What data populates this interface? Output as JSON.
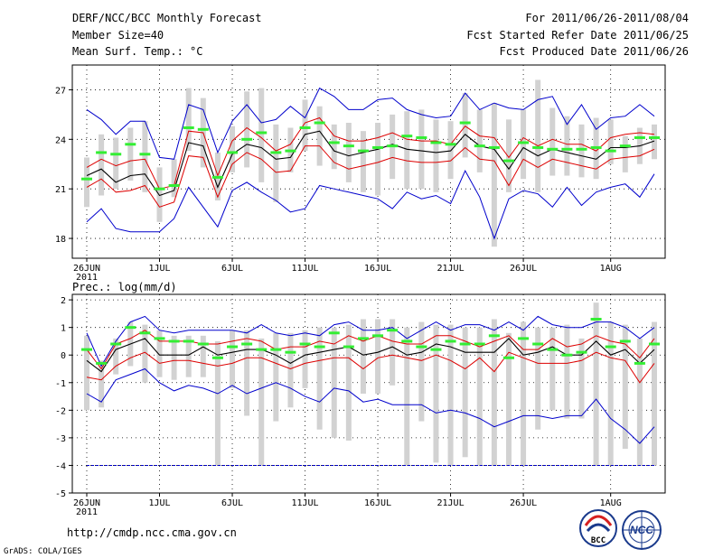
{
  "header": {
    "title": "DERF/NCC/BCC Monthly Forecast",
    "member": "Member Size=40",
    "variable": "Mean Surf. Temp.: °C",
    "valid": "For 2011/06/26-2011/08/04",
    "started": "Fcst Started Refer Date 2011/06/25",
    "produced": "Fcst Produced Date 2011/06/26"
  },
  "footer": {
    "url": "http://cmdp.ncc.cma.gov.cn",
    "grads": "GrADS: COLA/IGES"
  },
  "logos": {
    "bcc": "BCC",
    "ncc": "NCC"
  },
  "colors": {
    "box": "#d2d2d2",
    "median": "#33ee33",
    "mean": "#000000",
    "inner": "#dd0000",
    "outer": "#0000cc",
    "frame": "#000000"
  },
  "chart_data": [
    {
      "type": "line",
      "title": "Mean Surf. Temp.: °C",
      "x_ticks": [
        "26JUN",
        "1JUL",
        "6JUL",
        "11JUL",
        "16JUL",
        "21JUL",
        "26JUL",
        "1AUG"
      ],
      "x_year": "2011",
      "ylim": [
        16.8,
        28.5
      ],
      "y_ticks": [
        "18",
        "21",
        "24",
        "27"
      ],
      "y_values": [
        18,
        21,
        24,
        27
      ],
      "days": 40,
      "series": [
        {
          "name": "max",
          "values": [
            25.8,
            25.2,
            24.3,
            25.1,
            25.1,
            22.9,
            22.8,
            26.1,
            25.8,
            23.2,
            25.1,
            26.1,
            25.0,
            25.2,
            26.0,
            25.3,
            27.1,
            26.6,
            25.8,
            25.8,
            26.4,
            26.5,
            25.8,
            25.5,
            25.3,
            25.4,
            26.8,
            25.8,
            26.2,
            25.9,
            25.8,
            26.4,
            26.6,
            24.9,
            26.1,
            24.6,
            25.3,
            25.4,
            26.1,
            25.4
          ]
        },
        {
          "name": "p90",
          "values": [
            22.3,
            22.8,
            22.4,
            22.7,
            22.8,
            21.0,
            21.2,
            24.5,
            24.4,
            21.8,
            23.9,
            24.7,
            24.1,
            23.3,
            23.7,
            25.0,
            25.3,
            24.2,
            23.9,
            23.9,
            24.1,
            24.4,
            24.0,
            23.9,
            23.9,
            23.7,
            24.8,
            24.2,
            24.1,
            22.9,
            24.1,
            23.6,
            24.0,
            23.7,
            23.7,
            23.3,
            24.1,
            24.3,
            24.4,
            24.3
          ]
        },
        {
          "name": "mean",
          "values": [
            21.8,
            22.2,
            21.4,
            21.8,
            21.9,
            20.6,
            20.9,
            23.8,
            23.6,
            21.1,
            23.1,
            23.7,
            23.5,
            22.8,
            22.9,
            24.3,
            24.5,
            23.3,
            23.0,
            23.2,
            23.4,
            23.7,
            23.4,
            23.3,
            23.2,
            23.3,
            24.3,
            23.6,
            23.4,
            22.2,
            23.5,
            23.0,
            23.4,
            23.2,
            23.0,
            22.8,
            23.5,
            23.5,
            23.6,
            23.9
          ]
        },
        {
          "name": "p10",
          "values": [
            21.1,
            21.6,
            20.8,
            20.9,
            21.2,
            19.9,
            20.2,
            23.0,
            22.9,
            20.5,
            22.5,
            23.2,
            22.8,
            22.0,
            22.1,
            23.6,
            23.6,
            22.6,
            22.2,
            22.4,
            22.6,
            22.9,
            22.7,
            22.6,
            22.6,
            22.7,
            23.5,
            22.8,
            22.7,
            21.2,
            22.8,
            22.3,
            22.8,
            22.6,
            22.4,
            22.2,
            22.8,
            22.9,
            23.0,
            23.4
          ]
        },
        {
          "name": "min",
          "values": [
            19.0,
            19.8,
            18.6,
            18.4,
            18.4,
            18.4,
            19.2,
            21.1,
            19.9,
            18.7,
            20.9,
            21.4,
            20.8,
            20.3,
            19.6,
            19.8,
            21.2,
            21.0,
            20.8,
            20.6,
            20.4,
            19.8,
            20.8,
            20.4,
            20.6,
            20.1,
            22.1,
            20.5,
            18.0,
            20.4,
            20.9,
            20.7,
            19.9,
            21.1,
            20.0,
            20.8,
            21.1,
            21.3,
            20.5,
            21.9
          ]
        },
        {
          "name": "median",
          "values": [
            21.6,
            23.2,
            23.1,
            23.7,
            23.1,
            21.0,
            21.2,
            24.7,
            24.6,
            21.7,
            23.2,
            24.0,
            24.4,
            23.2,
            23.3,
            24.7,
            25.0,
            23.8,
            23.6,
            23.3,
            23.5,
            23.6,
            24.2,
            24.1,
            23.8,
            23.7,
            25.0,
            23.6,
            23.5,
            22.7,
            23.8,
            23.5,
            23.4,
            23.4,
            23.4,
            23.5,
            23.3,
            23.6,
            24.1,
            24.1
          ]
        },
        {
          "name": "box_hi",
          "values": [
            22.9,
            24.3,
            24.1,
            24.7,
            25.1,
            22.3,
            22.8,
            27.1,
            26.5,
            23.2,
            24.8,
            26.9,
            27.1,
            24.9,
            24.7,
            26.4,
            26.0,
            24.9,
            25.0,
            24.5,
            25.0,
            25.5,
            25.7,
            25.8,
            25.2,
            25.1,
            26.8,
            25.8,
            26.2,
            25.2,
            25.8,
            27.6,
            25.9,
            25.4,
            24.9,
            25.3,
            25.2,
            24.2,
            24.7,
            24.9
          ]
        },
        {
          "name": "box_lo",
          "values": [
            19.9,
            20.6,
            21.0,
            21.5,
            20.8,
            19.0,
            20.5,
            23.3,
            22.3,
            20.3,
            22.0,
            22.3,
            21.4,
            20.2,
            22.0,
            23.3,
            22.4,
            22.2,
            21.4,
            20.8,
            20.6,
            21.6,
            21.0,
            21.0,
            20.8,
            21.6,
            22.9,
            22.0,
            17.5,
            20.8,
            21.6,
            20.8,
            21.8,
            21.8,
            21.7,
            21.6,
            22.5,
            22.0,
            22.5,
            22.8
          ]
        }
      ]
    },
    {
      "type": "line",
      "title": "Prec.: log(mm/d)",
      "x_ticks": [
        "26JUN",
        "1JUL",
        "6JUL",
        "11JUL",
        "16JUL",
        "21JUL",
        "26JUL",
        "1AUG"
      ],
      "x_year": "2011",
      "ylim": [
        -5,
        2.2
      ],
      "y_ticks": [
        "2",
        "1",
        "0",
        "-1",
        "-2",
        "-3",
        "-4",
        "-5"
      ],
      "y_values": [
        2,
        1,
        0,
        -1,
        -2,
        -3,
        -4,
        -5
      ],
      "days": 40,
      "floor": -4,
      "series": [
        {
          "name": "max",
          "values": [
            0.8,
            -0.4,
            0.5,
            1.2,
            1.4,
            0.9,
            0.8,
            0.9,
            0.9,
            0.9,
            0.9,
            0.8,
            1.1,
            0.8,
            0.7,
            0.8,
            0.7,
            1.1,
            1.2,
            0.9,
            0.9,
            1.0,
            0.6,
            0.9,
            1.2,
            0.9,
            1.1,
            1.1,
            0.9,
            1.2,
            0.9,
            1.4,
            1.1,
            1.0,
            1.0,
            1.2,
            1.2,
            1.0,
            0.6,
            1.0
          ]
        },
        {
          "name": "p90",
          "values": [
            0.2,
            -0.5,
            0.4,
            0.6,
            0.9,
            0.5,
            0.5,
            0.5,
            0.4,
            0.4,
            0.5,
            0.6,
            0.5,
            0.2,
            0.3,
            0.3,
            0.5,
            0.4,
            0.7,
            0.5,
            0.7,
            0.5,
            0.4,
            0.4,
            0.7,
            0.7,
            0.5,
            0.3,
            0.5,
            0.7,
            0.2,
            0.2,
            0.6,
            0.3,
            0.4,
            0.7,
            0.5,
            0.4,
            -0.1,
            0.6
          ]
        },
        {
          "name": "mean",
          "values": [
            -0.2,
            -0.6,
            0.2,
            0.4,
            0.6,
            0.0,
            0.0,
            0.0,
            0.3,
            0.0,
            0.1,
            0.2,
            0.2,
            0.0,
            -0.3,
            0.0,
            0.1,
            0.2,
            0.3,
            0.0,
            0.1,
            0.3,
            0.0,
            0.1,
            0.4,
            0.3,
            0.1,
            0.1,
            0.1,
            0.6,
            0.0,
            0.1,
            0.3,
            0.0,
            0.0,
            0.5,
            0.0,
            0.2,
            -0.3,
            0.2
          ]
        },
        {
          "name": "p10",
          "values": [
            -0.8,
            -0.9,
            -0.4,
            -0.1,
            0.1,
            -0.3,
            -0.2,
            -0.2,
            -0.3,
            -0.4,
            -0.3,
            -0.1,
            -0.1,
            -0.3,
            -0.5,
            -0.3,
            -0.2,
            -0.1,
            -0.1,
            -0.5,
            -0.1,
            0.0,
            -0.1,
            -0.2,
            0.0,
            -0.2,
            -0.5,
            -0.1,
            -0.6,
            0.1,
            -0.1,
            -0.3,
            -0.3,
            -0.3,
            -0.2,
            0.1,
            -0.1,
            -0.2,
            -1.0,
            -0.3
          ]
        },
        {
          "name": "min",
          "values": [
            -1.4,
            -1.7,
            -0.9,
            -0.7,
            -0.5,
            -1.0,
            -1.3,
            -1.1,
            -1.2,
            -1.4,
            -1.1,
            -1.4,
            -1.2,
            -1.0,
            -1.2,
            -1.5,
            -1.7,
            -1.2,
            -1.3,
            -1.7,
            -1.6,
            -1.8,
            -1.8,
            -1.8,
            -2.1,
            -2.0,
            -2.1,
            -2.3,
            -2.6,
            -2.4,
            -2.2,
            -2.2,
            -2.3,
            -2.2,
            -2.2,
            -1.6,
            -2.3,
            -2.7,
            -3.2,
            -2.6
          ]
        },
        {
          "name": "median",
          "values": [
            0.2,
            -0.3,
            0.4,
            1.0,
            0.8,
            0.6,
            0.5,
            0.5,
            0.4,
            -0.1,
            0.3,
            0.4,
            0.2,
            0.2,
            0.1,
            0.4,
            0.3,
            0.8,
            0.3,
            0.6,
            0.7,
            0.9,
            0.5,
            0.3,
            0.2,
            0.5,
            0.4,
            0.4,
            0.7,
            -0.1,
            0.6,
            0.4,
            0.2,
            0.0,
            0.1,
            1.3,
            0.3,
            0.5,
            -0.3,
            0.4
          ]
        },
        {
          "name": "box_hi",
          "values": [
            0.7,
            -0.2,
            0.6,
            1.2,
            1.1,
            0.9,
            0.7,
            0.7,
            0.7,
            0.5,
            0.9,
            0.9,
            0.6,
            0.8,
            0.8,
            0.9,
            1.0,
            1.0,
            1.1,
            1.3,
            1.3,
            1.3,
            1.0,
            1.2,
            1.1,
            1.1,
            1.0,
            1.0,
            1.3,
            0.8,
            1.2,
            1.0,
            1.0,
            1.1,
            0.6,
            1.9,
            1.2,
            1.1,
            0.6,
            1.2
          ]
        },
        {
          "name": "box_lo",
          "values": [
            -2.0,
            -1.9,
            -0.7,
            -0.4,
            -1.0,
            -0.8,
            -0.9,
            -0.8,
            -0.8,
            -4.0,
            -1.2,
            -2.2,
            -4.0,
            -2.4,
            -1.9,
            -1.2,
            -2.7,
            -3.0,
            -3.1,
            -1.4,
            -1.4,
            -1.1,
            -4.0,
            -2.4,
            -3.9,
            -4.0,
            -3.7,
            -4.0,
            -4.0,
            -4.0,
            -4.0,
            -2.7,
            -2.0,
            -2.3,
            -2.3,
            -4.0,
            -4.0,
            -3.4,
            -4.0,
            -4.0
          ]
        }
      ]
    }
  ]
}
